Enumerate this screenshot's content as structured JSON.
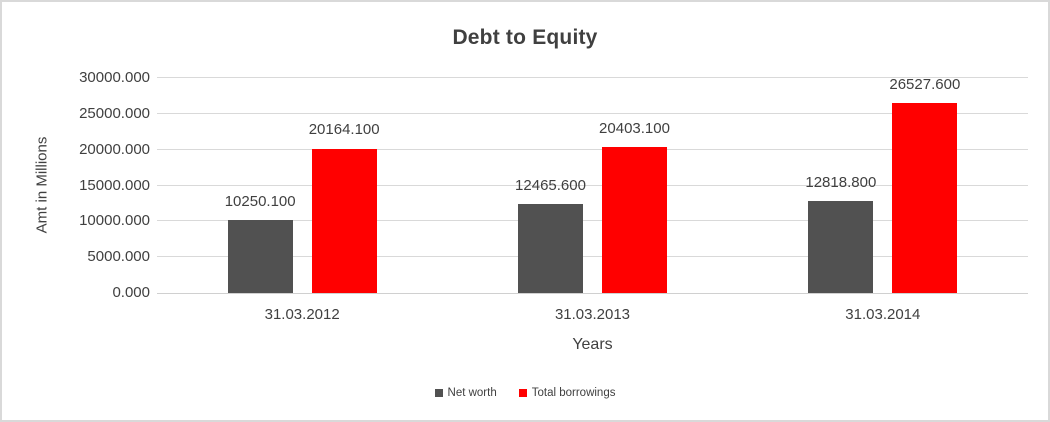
{
  "window": {
    "background": "#ffffff",
    "border_color": "#d9d9d9"
  },
  "chart_data": {
    "type": "bar",
    "title": "Debt to Equity",
    "xlabel": "Years",
    "ylabel": "Amt in Millions",
    "categories": [
      "31.03.2012",
      "31.03.2013",
      "31.03.2014"
    ],
    "series": [
      {
        "name": "Net worth",
        "color": "#515151",
        "values": [
          10250.1,
          12465.6,
          12818.8
        ]
      },
      {
        "name": "Total borrowings",
        "color": "#ff0000",
        "values": [
          20164.1,
          20403.1,
          26527.6
        ]
      }
    ],
    "data_labels": {
      "Net worth": [
        "10250.100",
        "12465.600",
        "12818.800"
      ],
      "Total borrowings": [
        "20164.100",
        "20403.100",
        "26527.600"
      ]
    },
    "ylim": [
      0,
      30000
    ],
    "ytick_step": 5000,
    "ytick_labels": [
      "0.000",
      "5000.000",
      "10000.000",
      "15000.000",
      "20000.000",
      "25000.000",
      "30000.000"
    ],
    "tick_decimals": 3,
    "grid": true,
    "gridline_color": "#d9d9d9",
    "legend_position": "bottom",
    "text_color": "#404040"
  }
}
